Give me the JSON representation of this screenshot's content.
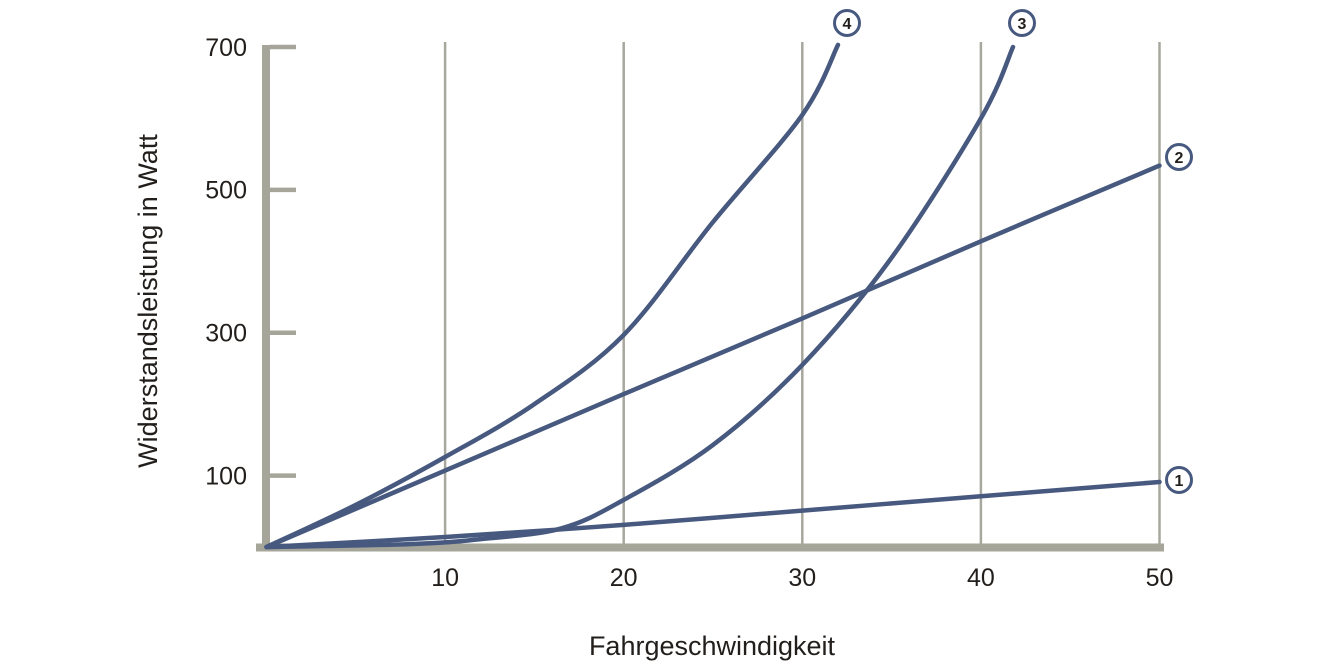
{
  "colors": {
    "curve": "#47597f",
    "axis": "#a6a599",
    "grid": "#a8a79e",
    "text": "#221e1b",
    "background": "#ffffff",
    "marker_fill": "#ffffff"
  },
  "chart_data": {
    "type": "line",
    "title": "",
    "xlabel": "Fahrgeschwindigkeit",
    "ylabel": "Widerstandsleistung in Watt",
    "xlim": [
      0,
      51
    ],
    "ylim": [
      0,
      715
    ],
    "x_ticks": [
      10,
      20,
      30,
      40,
      50
    ],
    "y_ticks": [
      100,
      300,
      500,
      700
    ],
    "grid": "vertical-gridlines-only",
    "legend": "circled numbers at curve ends",
    "series": [
      {
        "name": "curve-1",
        "label": "1",
        "points": [
          [
            0,
            0
          ],
          [
            10,
            14
          ],
          [
            20,
            31
          ],
          [
            30,
            51
          ],
          [
            40,
            71
          ],
          [
            50,
            91
          ]
        ],
        "marker_px": [
          1179,
          480
        ]
      },
      {
        "name": "curve-2",
        "label": "2",
        "points": [
          [
            0,
            0
          ],
          [
            10,
            107
          ],
          [
            20,
            214
          ],
          [
            30,
            320
          ],
          [
            40,
            428
          ],
          [
            50,
            534
          ]
        ],
        "marker_px": [
          1179,
          157
        ]
      },
      {
        "name": "curve-3",
        "label": "3",
        "points": [
          [
            0,
            0
          ],
          [
            8,
            4
          ],
          [
            12,
            11
          ],
          [
            16.5,
            26
          ],
          [
            20,
            66
          ],
          [
            25,
            143
          ],
          [
            30,
            255
          ],
          [
            35,
            405
          ],
          [
            40,
            600
          ],
          [
            41.8,
            700
          ]
        ],
        "marker_px": [
          1022,
          23
        ]
      },
      {
        "name": "curve-4",
        "label": "4",
        "points": [
          [
            0,
            0
          ],
          [
            5,
            59
          ],
          [
            10,
            126
          ],
          [
            15,
            200
          ],
          [
            20,
            297
          ],
          [
            25,
            455
          ],
          [
            30,
            605
          ],
          [
            32,
            703
          ]
        ],
        "marker_px": [
          847,
          23
        ]
      }
    ]
  }
}
